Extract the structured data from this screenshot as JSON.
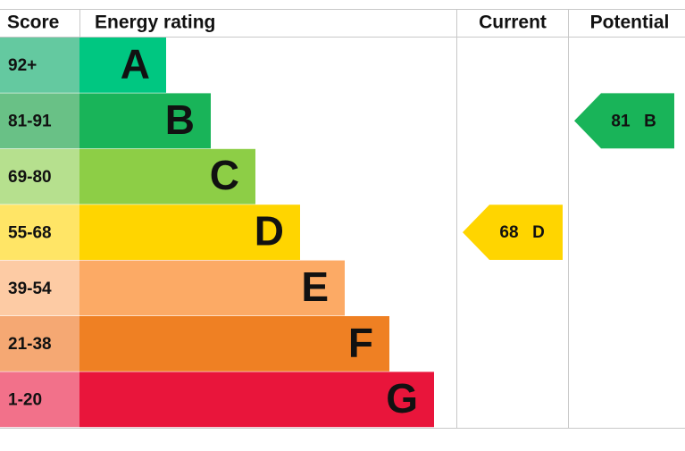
{
  "header": {
    "score": "Score",
    "energy_rating": "Energy rating",
    "current": "Current",
    "potential": "Potential"
  },
  "bands": [
    {
      "range": "92+",
      "letter": "A",
      "color": "#00c781",
      "score_color": "#64c9a0"
    },
    {
      "range": "81-91",
      "letter": "B",
      "color": "#19b459",
      "score_color": "#69c186"
    },
    {
      "range": "69-80",
      "letter": "C",
      "color": "#8dce46",
      "score_color": "#b6e08e"
    },
    {
      "range": "55-68",
      "letter": "D",
      "color": "#ffd500",
      "score_color": "#ffe566"
    },
    {
      "range": "39-54",
      "letter": "E",
      "color": "#fcaa65",
      "score_color": "#fdcba4"
    },
    {
      "range": "21-38",
      "letter": "F",
      "color": "#ef8023",
      "score_color": "#f5a873"
    },
    {
      "range": "1-20",
      "letter": "G",
      "color": "#e9153b",
      "score_color": "#f2718a"
    }
  ],
  "current": {
    "value": 68,
    "letter": "D"
  },
  "potential": {
    "value": 81,
    "letter": "B"
  }
}
